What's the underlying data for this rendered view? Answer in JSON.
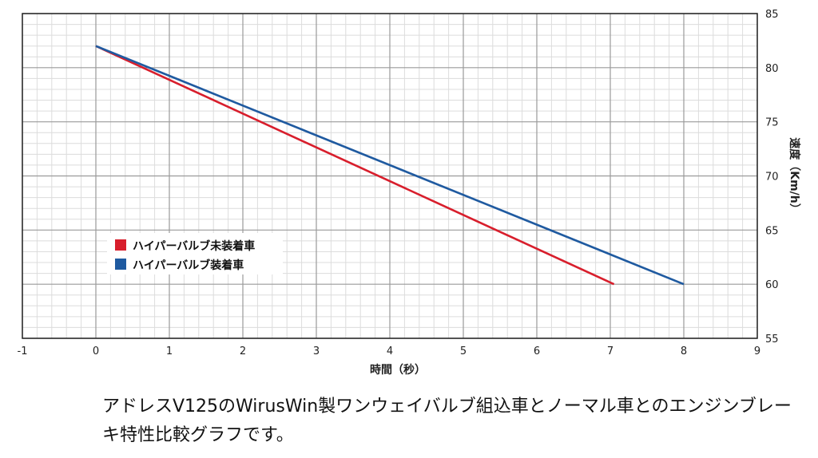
{
  "chart_data": {
    "type": "line",
    "xlabel": "時間（秒）",
    "ylabel": "速度（Km/h）",
    "xlim": [
      -1,
      9
    ],
    "ylim": [
      55,
      85
    ],
    "x_ticks": [
      -1,
      0,
      1,
      2,
      3,
      4,
      5,
      6,
      7,
      8,
      9
    ],
    "y_ticks": [
      55,
      60,
      65,
      70,
      75,
      80,
      85
    ],
    "y_axis_side": "right",
    "grid": true,
    "legend_position": "left-middle",
    "series": [
      {
        "name": "ハイパーバルブ未装着車",
        "color": "#d81e2c",
        "x": [
          0,
          7.05
        ],
        "y": [
          82,
          60
        ]
      },
      {
        "name": "ハイパーバルブ装着車",
        "color": "#1f5aa0",
        "x": [
          0,
          8
        ],
        "y": [
          82,
          60
        ]
      }
    ]
  },
  "caption": "アドレスV125のWirusWin製ワンウェイバルブ組込車とノーマル車とのエンジンブレーキ特性比較グラフです。"
}
